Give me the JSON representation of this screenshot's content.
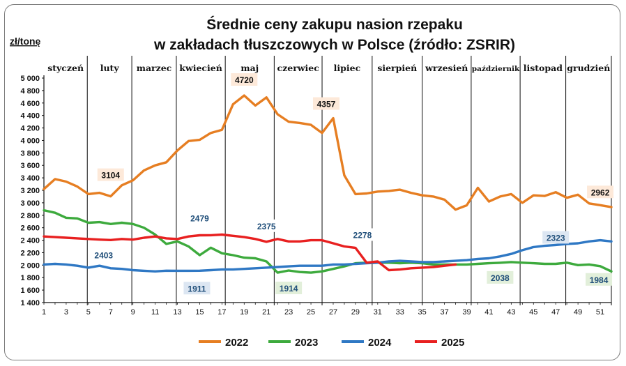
{
  "chart_data": {
    "type": "line",
    "title_line1": "Średnie ceny zakupu nasion rzepaku",
    "title_line2": "w zakładach tłuszczowych w Polsce  (źródło: ZSRIR)",
    "ylabel": "zł/tonę",
    "xlabel": "",
    "ylim": [
      1400,
      5000
    ],
    "xlim": [
      1,
      52
    ],
    "y_ticks": [
      "5 000",
      "4 800",
      "4 600",
      "4 400",
      "4 200",
      "4 000",
      "3 800",
      "3 600",
      "3 400",
      "3 200",
      "3 000",
      "2 800",
      "2 600",
      "2 400",
      "2 200",
      "2 000",
      "1 800",
      "1 600",
      "1 400"
    ],
    "y_tick_values": [
      5000,
      4800,
      4600,
      4400,
      4200,
      4000,
      3800,
      3600,
      3400,
      3200,
      3000,
      2800,
      2600,
      2400,
      2200,
      2000,
      1800,
      1600,
      1400
    ],
    "x_ticks": [
      "1",
      "3",
      "5",
      "7",
      "9",
      "11",
      "13",
      "15",
      "17",
      "19",
      "21",
      "23",
      "25",
      "27",
      "29",
      "31",
      "33",
      "35",
      "37",
      "39",
      "41",
      "43",
      "45",
      "47",
      "49",
      "51"
    ],
    "x_tick_values": [
      1,
      3,
      5,
      7,
      9,
      11,
      13,
      15,
      17,
      19,
      21,
      23,
      25,
      27,
      29,
      31,
      33,
      35,
      37,
      39,
      41,
      43,
      45,
      47,
      49,
      51
    ],
    "months": [
      {
        "name": "styczeń",
        "start": 1,
        "end": 4.9
      },
      {
        "name": "luty",
        "start": 4.9,
        "end": 8.9
      },
      {
        "name": "marzec",
        "start": 8.9,
        "end": 12.9
      },
      {
        "name": "kwiecień",
        "start": 12.9,
        "end": 17.3
      },
      {
        "name": "maj",
        "start": 17.3,
        "end": 21.7
      },
      {
        "name": "czerwiec",
        "start": 21.7,
        "end": 26
      },
      {
        "name": "lipiec",
        "start": 26,
        "end": 30.5
      },
      {
        "name": "sierpień",
        "start": 30.5,
        "end": 35
      },
      {
        "name": "wrzesień",
        "start": 35,
        "end": 39.4
      },
      {
        "name": "październik",
        "start": 39.4,
        "end": 43.8
      },
      {
        "name": "listopad",
        "start": 43.8,
        "end": 47.9
      },
      {
        "name": "grudzień",
        "start": 47.9,
        "end": 52
      }
    ],
    "series": [
      {
        "name": "2022",
        "color": "#e67e22",
        "values": [
          3220,
          3380,
          3340,
          3260,
          3140,
          3160,
          3104,
          3280,
          3360,
          3520,
          3600,
          3650,
          3840,
          3990,
          4010,
          4120,
          4170,
          4580,
          4720,
          4560,
          4690,
          4420,
          4300,
          4280,
          4250,
          4120,
          4357,
          3440,
          3140,
          3150,
          3180,
          3190,
          3210,
          3160,
          3120,
          3100,
          3050,
          2890,
          2960,
          3240,
          3020,
          3100,
          3140,
          3000,
          3120,
          3110,
          3170,
          3080,
          3130,
          2990,
          2962,
          2930
        ]
      },
      {
        "name": "2023",
        "color": "#3daa3d",
        "values": [
          2880,
          2840,
          2760,
          2750,
          2680,
          2690,
          2660,
          2680,
          2660,
          2600,
          2490,
          2340,
          2380,
          2300,
          2160,
          2280,
          2190,
          2160,
          2120,
          2110,
          2060,
          1880,
          1914,
          1890,
          1880,
          1900,
          1940,
          1980,
          2030,
          2040,
          2040,
          2040,
          2030,
          2040,
          2030,
          2010,
          2010,
          2010,
          2010,
          2020,
          2030,
          2038,
          2050,
          2040,
          2030,
          2020,
          2020,
          2040,
          2000,
          2010,
          1984,
          1900
        ]
      },
      {
        "name": "2024",
        "color": "#2f78c4",
        "values": [
          2010,
          2020,
          2010,
          1990,
          1960,
          1990,
          1950,
          1940,
          1920,
          1910,
          1900,
          1911,
          1910,
          1910,
          1911,
          1920,
          1930,
          1930,
          1940,
          1950,
          1960,
          1970,
          1980,
          1990,
          1990,
          1990,
          2010,
          2010,
          2020,
          2030,
          2040,
          2060,
          2070,
          2060,
          2050,
          2050,
          2060,
          2070,
          2080,
          2100,
          2110,
          2140,
          2180,
          2240,
          2290,
          2310,
          2323,
          2340,
          2350,
          2380,
          2400,
          2380
        ]
      },
      {
        "name": "2025",
        "color": "#e82020",
        "values": [
          2460,
          2450,
          2440,
          2430,
          2420,
          2410,
          2403,
          2420,
          2410,
          2440,
          2460,
          2430,
          2420,
          2460,
          2479,
          2480,
          2490,
          2470,
          2450,
          2420,
          2375,
          2420,
          2380,
          2380,
          2400,
          2400,
          2350,
          2300,
          2278,
          2040,
          2060,
          1920,
          1930,
          1950,
          1960,
          1970,
          1990,
          2010
        ]
      }
    ],
    "annotations": [
      {
        "text": "3104",
        "series": "2022",
        "x": 7,
        "y": 3104
      },
      {
        "text": "4720",
        "series": "2022",
        "x": 19,
        "y": 4720
      },
      {
        "text": "4357",
        "series": "2022",
        "x": 27,
        "y": 4357
      },
      {
        "text": "2962",
        "series": "2022",
        "x": 51,
        "y": 2962
      },
      {
        "text": "2403",
        "series": "2025",
        "x": 7,
        "y": 2403
      },
      {
        "text": "2479",
        "series": "2025",
        "x": 15,
        "y": 2479
      },
      {
        "text": "2375",
        "series": "2025",
        "x": 21,
        "y": 2375
      },
      {
        "text": "2278",
        "series": "2025",
        "x": 29,
        "y": 2278
      },
      {
        "text": "1911",
        "series": "2024",
        "x": 15,
        "y": 1911
      },
      {
        "text": "1914",
        "series": "2023",
        "x": 23,
        "y": 1914
      },
      {
        "text": "2038",
        "series": "2023",
        "x": 42,
        "y": 2038
      },
      {
        "text": "2323",
        "series": "2024",
        "x": 47,
        "y": 2323
      },
      {
        "text": "1984",
        "series": "2023",
        "x": 51,
        "y": 1984
      }
    ],
    "legend_position": "bottom",
    "grid": false
  }
}
